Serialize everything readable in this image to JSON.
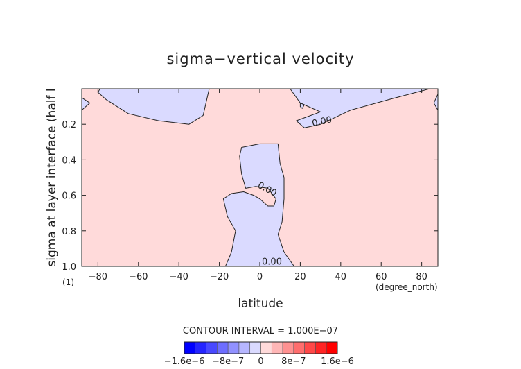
{
  "chart_data": {
    "type": "heatmap",
    "title": "sigma−vertical velocity",
    "xlabel": "latitude",
    "ylabel": "sigma at layer interface (half l",
    "x_units": "(degree_north)",
    "y_units": "(1)",
    "xlim": [
      -88,
      88
    ],
    "ylim": [
      1.0,
      0.0
    ],
    "x_ticks": [
      "−80",
      "−60",
      "−40",
      "−20",
      "0",
      "20",
      "40",
      "60",
      "80"
    ],
    "x_tick_values": [
      -80,
      -60,
      -40,
      -20,
      0,
      20,
      40,
      60,
      80
    ],
    "y_ticks": [
      "0.2",
      "0.4",
      "0.6",
      "0.8",
      "1.0"
    ],
    "y_tick_values": [
      0.2,
      0.4,
      0.6,
      0.8,
      1.0
    ],
    "background_level": "positive",
    "contour_labels": [
      "0.00",
      "0.00",
      "0.00"
    ],
    "regions": [
      {
        "name": "left-edge-negative",
        "points": [
          [
            -88,
            0.05
          ],
          [
            -84,
            0.08
          ],
          [
            -86,
            0.1
          ],
          [
            -88,
            0.12
          ]
        ]
      },
      {
        "name": "top-band-negative",
        "points": [
          [
            -79,
            0.0
          ],
          [
            -25,
            0.0
          ],
          [
            -28,
            0.15
          ],
          [
            -35,
            0.2
          ],
          [
            -50,
            0.18
          ],
          [
            -65,
            0.14
          ],
          [
            -76,
            0.06
          ],
          [
            -80,
            0.02
          ]
        ]
      },
      {
        "name": "right-top-negative",
        "points": [
          [
            15,
            0.0
          ],
          [
            84,
            0.0
          ],
          [
            64,
            0.06
          ],
          [
            45,
            0.12
          ],
          [
            30,
            0.2
          ],
          [
            22,
            0.22
          ],
          [
            18,
            0.18
          ],
          [
            30,
            0.13
          ],
          [
            20,
            0.08
          ]
        ]
      },
      {
        "name": "right-small-negative",
        "points": [
          [
            20,
            0.08
          ],
          [
            22,
            0.09
          ],
          [
            21,
            0.11
          ],
          [
            20,
            0.1
          ]
        ]
      },
      {
        "name": "right-edge-negative",
        "points": [
          [
            88,
            0.03
          ],
          [
            86,
            0.08
          ],
          [
            88,
            0.12
          ]
        ]
      },
      {
        "name": "center-column-negative",
        "points": [
          [
            -9,
            0.33
          ],
          [
            0,
            0.31
          ],
          [
            9,
            0.31
          ],
          [
            10,
            0.42
          ],
          [
            12,
            0.5
          ],
          [
            12,
            0.62
          ],
          [
            11,
            0.75
          ],
          [
            9,
            0.82
          ],
          [
            12,
            0.92
          ],
          [
            17,
            1.0
          ],
          [
            -17,
            1.0
          ],
          [
            -14,
            0.92
          ],
          [
            -12,
            0.8
          ],
          [
            -16,
            0.72
          ],
          [
            -18,
            0.62
          ],
          [
            -14,
            0.59
          ],
          [
            -8,
            0.58
          ],
          [
            -3,
            0.6
          ],
          [
            0,
            0.62
          ],
          [
            4,
            0.66
          ],
          [
            7,
            0.66
          ],
          [
            8,
            0.62
          ],
          [
            4,
            0.56
          ],
          [
            -2,
            0.55
          ],
          [
            -7,
            0.56
          ],
          [
            -9,
            0.48
          ],
          [
            -10,
            0.38
          ]
        ]
      }
    ],
    "contour_interval_text": "CONTOUR INTERVAL = 1.000E−07",
    "colorbar": {
      "colors": [
        "#0000ff",
        "#2424ff",
        "#4848ff",
        "#6d6dff",
        "#9191ff",
        "#b6b6ff",
        "#dadaff",
        "#ffdada",
        "#ffb6b6",
        "#ff9191",
        "#ff6d6d",
        "#ff4848",
        "#ff2424",
        "#ff0000"
      ],
      "labels": [
        "−1.6e−6",
        "−8e−7",
        "0",
        "8e−7",
        "1.6e−6"
      ]
    },
    "colors": {
      "negative": "#dadaff",
      "positive": "#ffdada"
    }
  }
}
